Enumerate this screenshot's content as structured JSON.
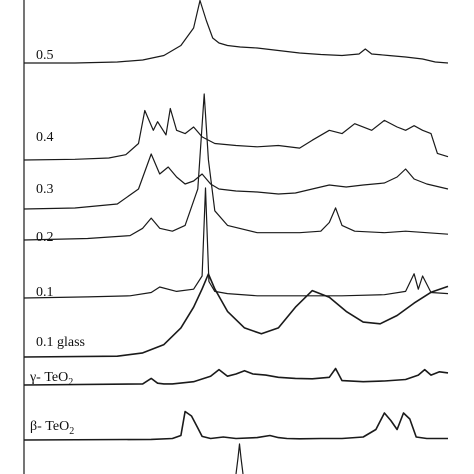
{
  "chart_data": {
    "type": "line",
    "title": "",
    "xlabel": "",
    "ylabel": "",
    "x_range": [
      0,
      100
    ],
    "grid": false,
    "legend": "none",
    "series": [
      {
        "name": "0.5",
        "style": "solid",
        "x": [
          0,
          12,
          22,
          28,
          33,
          37,
          40,
          41.5,
          43,
          44.5,
          46,
          48,
          51,
          55,
          60,
          65,
          70,
          75,
          79,
          80.5,
          82,
          86,
          90,
          94,
          97,
          100
        ],
        "values": [
          0.1,
          0.1,
          0.12,
          0.16,
          0.25,
          0.45,
          0.8,
          1.35,
          0.95,
          0.6,
          0.5,
          0.45,
          0.42,
          0.4,
          0.35,
          0.3,
          0.27,
          0.25,
          0.28,
          0.38,
          0.28,
          0.25,
          0.22,
          0.18,
          0.12,
          0.1
        ]
      },
      {
        "name": "0.4",
        "style": "solid",
        "x": [
          0,
          12,
          20,
          24,
          27,
          28.5,
          30.5,
          31.5,
          33.5,
          34.5,
          36,
          38,
          40,
          42,
          45,
          50,
          55,
          60,
          65,
          68,
          72,
          75,
          78,
          82,
          85,
          88,
          90,
          92,
          94,
          96,
          97.5,
          100
        ],
        "values": [
          0,
          0.01,
          0.03,
          0.08,
          0.25,
          0.75,
          0.45,
          0.58,
          0.38,
          0.78,
          0.45,
          0.4,
          0.5,
          0.35,
          0.25,
          0.22,
          0.2,
          0.22,
          0.18,
          0.3,
          0.45,
          0.4,
          0.55,
          0.45,
          0.6,
          0.5,
          0.45,
          0.52,
          0.45,
          0.4,
          0.1,
          0.05
        ]
      },
      {
        "name": "0.3",
        "style": "solid",
        "x": [
          0,
          12,
          22,
          27,
          30,
          32,
          34,
          36,
          38,
          40,
          42,
          44,
          46,
          50,
          55,
          60,
          64,
          68,
          72,
          76,
          80,
          85,
          88,
          90,
          92,
          95,
          98,
          100
        ],
        "values": [
          0,
          0.01,
          0.05,
          0.2,
          0.55,
          0.35,
          0.42,
          0.32,
          0.25,
          0.28,
          0.35,
          0.25,
          0.2,
          0.18,
          0.17,
          0.15,
          0.16,
          0.2,
          0.24,
          0.22,
          0.24,
          0.26,
          0.32,
          0.4,
          0.3,
          0.25,
          0.22,
          0.2
        ]
      },
      {
        "name": "0.2",
        "style": "solid",
        "x": [
          0,
          15,
          25,
          28,
          30,
          32,
          35,
          38,
          41,
          42.5,
          43.5,
          45,
          48,
          55,
          65,
          70,
          72,
          73.5,
          75,
          78,
          85,
          90,
          95,
          100
        ],
        "values": [
          0,
          0.01,
          0.03,
          0.08,
          0.15,
          0.08,
          0.06,
          0.1,
          0.35,
          1.0,
          0.55,
          0.2,
          0.1,
          0.05,
          0.05,
          0.06,
          0.12,
          0.22,
          0.1,
          0.06,
          0.05,
          0.06,
          0.05,
          0.04
        ]
      },
      {
        "name": "0.1",
        "style": "solid",
        "x": [
          0,
          15,
          25,
          30,
          32,
          36,
          40,
          42,
          42.8,
          43.6,
          45,
          48,
          55,
          65,
          75,
          85,
          90,
          92,
          93,
          94,
          96,
          100
        ],
        "values": [
          0,
          0.01,
          0.02,
          0.05,
          0.1,
          0.06,
          0.08,
          0.2,
          1.0,
          0.15,
          0.06,
          0.04,
          0.02,
          0.02,
          0.02,
          0.03,
          0.06,
          0.22,
          0.08,
          0.2,
          0.05,
          0.04
        ]
      },
      {
        "name": "0.1 glass",
        "style": "noisy",
        "x": [
          0,
          22,
          28,
          33,
          37,
          40,
          42,
          43.5,
          45,
          48,
          52,
          56,
          60,
          64,
          68,
          72,
          76,
          80,
          84,
          88,
          92,
          96,
          100
        ],
        "values": [
          0,
          0.01,
          0.05,
          0.15,
          0.35,
          0.6,
          0.82,
          1.0,
          0.82,
          0.55,
          0.35,
          0.28,
          0.35,
          0.6,
          0.8,
          0.72,
          0.55,
          0.42,
          0.4,
          0.5,
          0.65,
          0.78,
          0.85
        ]
      },
      {
        "name": "γ- TeO2",
        "style": "noisy",
        "x": [
          0,
          28,
          30,
          31.5,
          33,
          35,
          40,
          44,
          46,
          48,
          50,
          52,
          54,
          57,
          60,
          64,
          68,
          72,
          73.5,
          75,
          80,
          85,
          90,
          93,
          94.5,
          96,
          98,
          100
        ],
        "values": [
          0,
          0.05,
          0.3,
          0.08,
          0.05,
          0.05,
          0.15,
          0.4,
          0.7,
          0.4,
          0.5,
          0.65,
          0.5,
          0.45,
          0.35,
          0.3,
          0.28,
          0.35,
          0.75,
          0.2,
          0.15,
          0.18,
          0.25,
          0.45,
          0.7,
          0.45,
          0.6,
          0.55
        ]
      },
      {
        "name": "β- TeO2",
        "style": "noisy",
        "x": [
          0,
          30,
          35,
          37,
          38,
          39.5,
          41,
          42,
          44,
          47,
          50,
          55,
          58,
          60,
          62,
          65,
          70,
          75,
          80,
          83,
          85,
          86.5,
          88,
          89.5,
          91,
          92.5,
          95,
          100
        ],
        "values": [
          0,
          0.02,
          0.05,
          0.15,
          0.95,
          0.8,
          0.4,
          0.12,
          0.05,
          0.1,
          0.05,
          0.08,
          0.15,
          0.08,
          0.05,
          0.04,
          0.05,
          0.05,
          0.1,
          0.35,
          0.9,
          0.65,
          0.35,
          0.9,
          0.7,
          0.1,
          0.05,
          0.05
        ]
      }
    ]
  },
  "labels": {
    "s0": "0.5",
    "s1": "0.4",
    "s2": "0.3",
    "s3": "0.2",
    "s4": "0.1",
    "s5": "0.1 glass",
    "s6_main": "γ- TeO",
    "s6_sub": "2",
    "s7_main": "β- TeO",
    "s7_sub": "2"
  }
}
